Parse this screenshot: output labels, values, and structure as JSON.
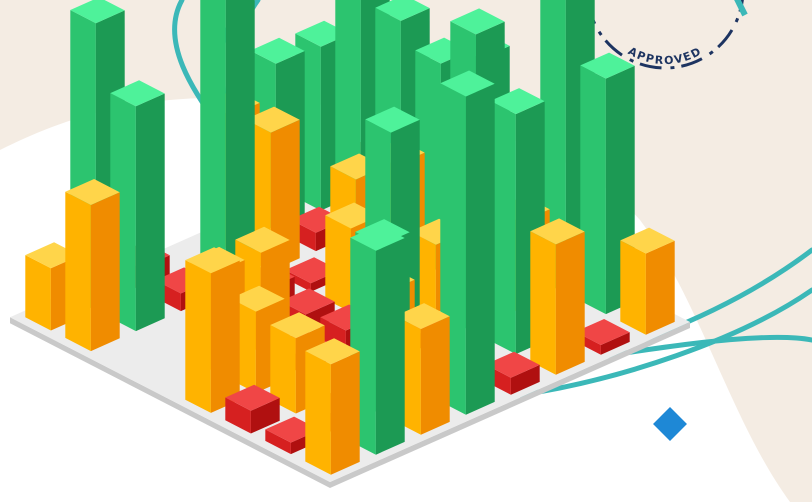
{
  "stamp": {
    "text": "APPROVED"
  }
}
